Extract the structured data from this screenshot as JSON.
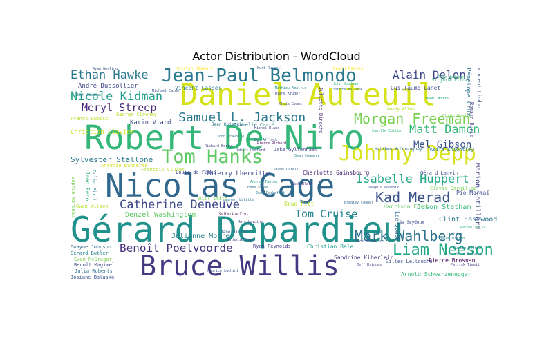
{
  "chart_data": {
    "type": "wordcloud",
    "title": "Actor Distribution - WordCloud",
    "colormap": "viridis",
    "background": "#ffffff",
    "words": [
      {
        "text": "Gérard Depardieu",
        "weight": 100,
        "color": "#21918c"
      },
      {
        "text": "Nicolas Cage",
        "weight": 88,
        "color": "#31688e"
      },
      {
        "text": "Robert De Niro",
        "weight": 86,
        "color": "#35b779"
      },
      {
        "text": "Daniel Auteuil",
        "weight": 82,
        "color": "#d5e21a"
      },
      {
        "text": "Bruce Willis",
        "weight": 76,
        "color": "#443983"
      },
      {
        "text": "Jean-Paul Belmondo",
        "weight": 58,
        "color": "#2a788e"
      },
      {
        "text": "Johnny Depp",
        "weight": 56,
        "color": "#d8e219"
      },
      {
        "text": "Tom Hanks",
        "weight": 55,
        "color": "#5ec962"
      },
      {
        "text": "Liam Neeson",
        "weight": 42,
        "color": "#22a884"
      },
      {
        "text": "Morgan Freeman",
        "weight": 40,
        "color": "#7ad151"
      },
      {
        "text": "Mark Wahlberg",
        "weight": 38,
        "color": "#2c728e"
      },
      {
        "text": "Kad Merad",
        "weight": 38,
        "color": "#3b528b"
      },
      {
        "text": "Catherine Deneuve",
        "weight": 34,
        "color": "#3e4989"
      },
      {
        "text": "Benoît Poelvoorde",
        "weight": 32,
        "color": "#46327e"
      },
      {
        "text": "Samuel L. Jackson",
        "weight": 32,
        "color": "#2a788e"
      },
      {
        "text": "Isabelle Huppert",
        "weight": 30,
        "color": "#22a884"
      },
      {
        "text": "Matt Damon",
        "weight": 30,
        "color": "#35b779"
      },
      {
        "text": "Nicole Kidman",
        "weight": 30,
        "color": "#1f9e89"
      },
      {
        "text": "Ethan Hawke",
        "weight": 30,
        "color": "#2a788e"
      },
      {
        "text": "Meryl Streep",
        "weight": 28,
        "color": "#482878"
      },
      {
        "text": "Alain Delon",
        "weight": 28,
        "color": "#3e4989"
      },
      {
        "text": "Tom Cruise",
        "weight": 28,
        "color": "#26828e"
      },
      {
        "text": "Mel Gibson",
        "weight": 24,
        "color": "#3b528b"
      },
      {
        "text": "Sylvester Stallone",
        "weight": 18,
        "color": "#2a788e"
      },
      {
        "text": "Denzel Washington",
        "weight": 16,
        "color": "#5ec962"
      },
      {
        "text": "Julianne Moore",
        "weight": 16,
        "color": "#26828e"
      },
      {
        "text": "André Dussollier",
        "weight": 16,
        "color": "#414487"
      },
      {
        "text": "Jason Statham",
        "weight": 14,
        "color": "#35b779"
      },
      {
        "text": "Karin Viard",
        "weight": 14,
        "color": "#3e4989"
      },
      {
        "text": "Brad Pitt",
        "weight": 14,
        "color": "#b5de2b"
      },
      {
        "text": "Christian Bale",
        "weight": 13,
        "color": "#1f9e89"
      },
      {
        "text": "Clint Eastwood",
        "weight": 13,
        "color": "#2c728e"
      },
      {
        "text": "Thierry Lhermitte",
        "weight": 13,
        "color": "#3e4989"
      },
      {
        "text": "Charlotte Gainsbourg",
        "weight": 13,
        "color": "#482878"
      },
      {
        "text": "Marion Cotillard",
        "weight": 13,
        "color": "#414487"
      },
      {
        "text": "Christian Clavier",
        "weight": 13,
        "color": "#d0e11c"
      },
      {
        "text": "Harrison Ford",
        "weight": 13,
        "color": "#5ec962"
      },
      {
        "text": "Sandrine Kiberlain",
        "weight": 12,
        "color": "#443983"
      },
      {
        "text": "Arnold Schwarzenegger",
        "weight": 12,
        "color": "#35b779"
      },
      {
        "text": "Pierce Brosnan",
        "weight": 12,
        "color": "#440154"
      },
      {
        "text": "Guillaume Canet",
        "weight": 12,
        "color": "#3e4989"
      },
      {
        "text": "Vincent Cassel",
        "weight": 12,
        "color": "#2a788e"
      },
      {
        "text": "Jean Reno",
        "weight": 12,
        "color": "#35b779"
      },
      {
        "text": "Ryan Reynolds",
        "weight": 10,
        "color": "#443983"
      },
      {
        "text": "Gérard Lanvin",
        "weight": 10,
        "color": "#3e4989"
      },
      {
        "text": "Pio Marmaï",
        "weight": 10,
        "color": "#3b528b"
      },
      {
        "text": "Dwayne Johnson",
        "weight": 10,
        "color": "#31688e"
      },
      {
        "text": "Gérard Butler",
        "weight": 10,
        "color": "#26828e"
      },
      {
        "text": "Ewan McGregor",
        "weight": 10,
        "color": "#7ad151"
      },
      {
        "text": "Benoît Magimel",
        "weight": 10,
        "color": "#3e4989"
      },
      {
        "text": "Julia Roberts",
        "weight": 10,
        "color": "#2c728e"
      },
      {
        "text": "Josiane Balasko",
        "weight": 10,
        "color": "#3b528b"
      },
      {
        "text": "François Cluzet",
        "weight": 10,
        "color": "#b5de2b"
      },
      {
        "text": "Antonio Banderas",
        "weight": 10,
        "color": "#d0e11c"
      },
      {
        "text": "Owen Wilson",
        "weight": 10,
        "color": "#b5de2b"
      },
      {
        "text": "Louis de Funès",
        "weight": 10,
        "color": "#3e4989"
      },
      {
        "text": "Will Smith",
        "weight": 10,
        "color": "#7ad151"
      },
      {
        "text": "Isabelle Carré",
        "weight": 10,
        "color": "#26828e"
      },
      {
        "text": "Jake Gyllenhaal",
        "weight": 10,
        "color": "#3e4989"
      },
      {
        "text": "Keira Knightley",
        "weight": 10,
        "color": "#2a788e"
      },
      {
        "text": "Matthew McConaughey",
        "weight": 10,
        "color": "#31688e"
      },
      {
        "text": "Virginie Efira",
        "weight": 9,
        "color": "#35b779"
      },
      {
        "text": "Pénélope Cruz",
        "weight": 10,
        "color": "#2c728e"
      },
      {
        "text": "Vincent Lindon",
        "weight": 9,
        "color": "#3b528b"
      },
      {
        "text": "Romain Duris",
        "weight": 9,
        "color": "#414487"
      },
      {
        "text": "George Clooney",
        "weight": 9,
        "color": "#b5de2b"
      },
      {
        "text": "Franck Dubosc",
        "weight": 9,
        "color": "#b5de2b"
      },
      {
        "text": "Jean Dujardin",
        "weight": 8,
        "color": "#2a788e"
      },
      {
        "text": "Keanu Reeves",
        "weight": 9,
        "color": "#fde725"
      },
      {
        "text": "Kurt Russell",
        "weight": 8,
        "color": "#31688e"
      },
      {
        "text": "Kristen Stewart",
        "weight": 8,
        "color": "#fde725"
      },
      {
        "text": "Ryan Gosling",
        "weight": 7,
        "color": "#3b528b"
      },
      {
        "text": "Juliette Binoche",
        "weight": 8,
        "color": "#482878"
      },
      {
        "text": "Sophie Marceau",
        "weight": 8,
        "color": "#7ad151"
      },
      {
        "text": "Colin Firth",
        "weight": 8,
        "color": "#26828e"
      },
      {
        "text": "Léa Seydoux",
        "weight": 8,
        "color": "#3e4989"
      },
      {
        "text": "Lee Jones",
        "weight": 8,
        "color": "#31688e"
      },
      {
        "text": "Gilles Lellouche",
        "weight": 8,
        "color": "#3b528b"
      },
      {
        "text": "Jane Birkin",
        "weight": 7,
        "color": "#31688e"
      },
      {
        "text": "Catherine Frot",
        "weight": 7,
        "color": "#440154"
      },
      {
        "text": "Steve Carell",
        "weight": 7,
        "color": "#31688e"
      },
      {
        "text": "Anne Hathaway",
        "weight": 7,
        "color": "#35b779"
      },
      {
        "text": "Bradley Cooper",
        "weight": 7,
        "color": "#31688e"
      },
      {
        "text": "Michael Caine",
        "weight": 7,
        "color": "#3b528b"
      },
      {
        "text": "Jack Black",
        "weight": 7,
        "color": "#46327e"
      },
      {
        "text": "Jeff Bridges",
        "weight": 7,
        "color": "#414487"
      },
      {
        "text": "Helen Mirren",
        "weight": 7,
        "color": "#26828e"
      },
      {
        "text": "Fabrice Luchini",
        "weight": 7,
        "color": "#3b528b"
      },
      {
        "text": "Pierre Richard",
        "weight": 7,
        "color": "#440154"
      },
      {
        "text": "Richard Berry",
        "weight": 7,
        "color": "#3e4989"
      },
      {
        "text": "John Travolta",
        "weight": 7,
        "color": "#2a788e"
      },
      {
        "text": "Robert Redford",
        "weight": 7,
        "color": "#414487"
      },
      {
        "text": "Sean Connery",
        "weight": 7,
        "color": "#2a788e"
      },
      {
        "text": "Jack Nicholson",
        "weight": 7,
        "color": "#3e4989"
      },
      {
        "text": "Woody Allen",
        "weight": 7,
        "color": "#b5de2b"
      },
      {
        "text": "Naomi Watts",
        "weight": 7,
        "color": "#22a884"
      },
      {
        "text": "Dustin Hoffman",
        "weight": 7,
        "color": "#26828e"
      },
      {
        "text": "Joaquin Phoenix",
        "weight": 7,
        "color": "#3b528b"
      },
      {
        "text": "Mathieu Amalric",
        "weight": 7,
        "color": "#21918c"
      },
      {
        "text": "Hugh Jackman",
        "weight": 7,
        "color": "#26828e"
      },
      {
        "text": "Diane Kruger",
        "weight": 7,
        "color": "#3e4989"
      },
      {
        "text": "Clovis Cornillac",
        "weight": 7,
        "color": "#7ad151"
      },
      {
        "text": "Laurent Lafitte",
        "weight": 7,
        "color": "#2a788e"
      },
      {
        "text": "Elodie Bouchez",
        "weight": 7,
        "color": "#7ad151"
      },
      {
        "text": "Camille Cottin",
        "weight": 7,
        "color": "#35b779"
      },
      {
        "text": "Nathalie Baye",
        "weight": 7,
        "color": "#3e4989"
      },
      {
        "text": "Rachel Weisz",
        "weight": 7,
        "color": "#35b779"
      },
      {
        "text": "Patrick Timsit",
        "weight": 7,
        "color": "#414487"
      },
      {
        "text": "Sandra Bullock",
        "weight": 7,
        "color": "#31688e"
      },
      {
        "text": "Michel Blanc",
        "weight": 7,
        "color": "#3e4989"
      },
      {
        "text": "Chris Evans",
        "weight": 7,
        "color": "#3b528b"
      },
      {
        "text": "Emma Stone",
        "weight": 7,
        "color": "#2c728e"
      },
      {
        "text": "Ben Affleck",
        "weight": 7,
        "color": "#31688e"
      },
      {
        "text": "Jean Rochefort",
        "weight": 7,
        "color": "#2a788e"
      },
      {
        "text": "Audrey Tautou",
        "weight": 7,
        "color": "#1f9e89"
      },
      {
        "text": "Marc Lavoine",
        "weight": 7,
        "color": "#3e4989"
      },
      {
        "text": "Julie Delpy",
        "weight": 7,
        "color": "#2a788e"
      },
      {
        "text": "John Goodman",
        "weight": 7,
        "color": "#35b779"
      }
    ]
  }
}
